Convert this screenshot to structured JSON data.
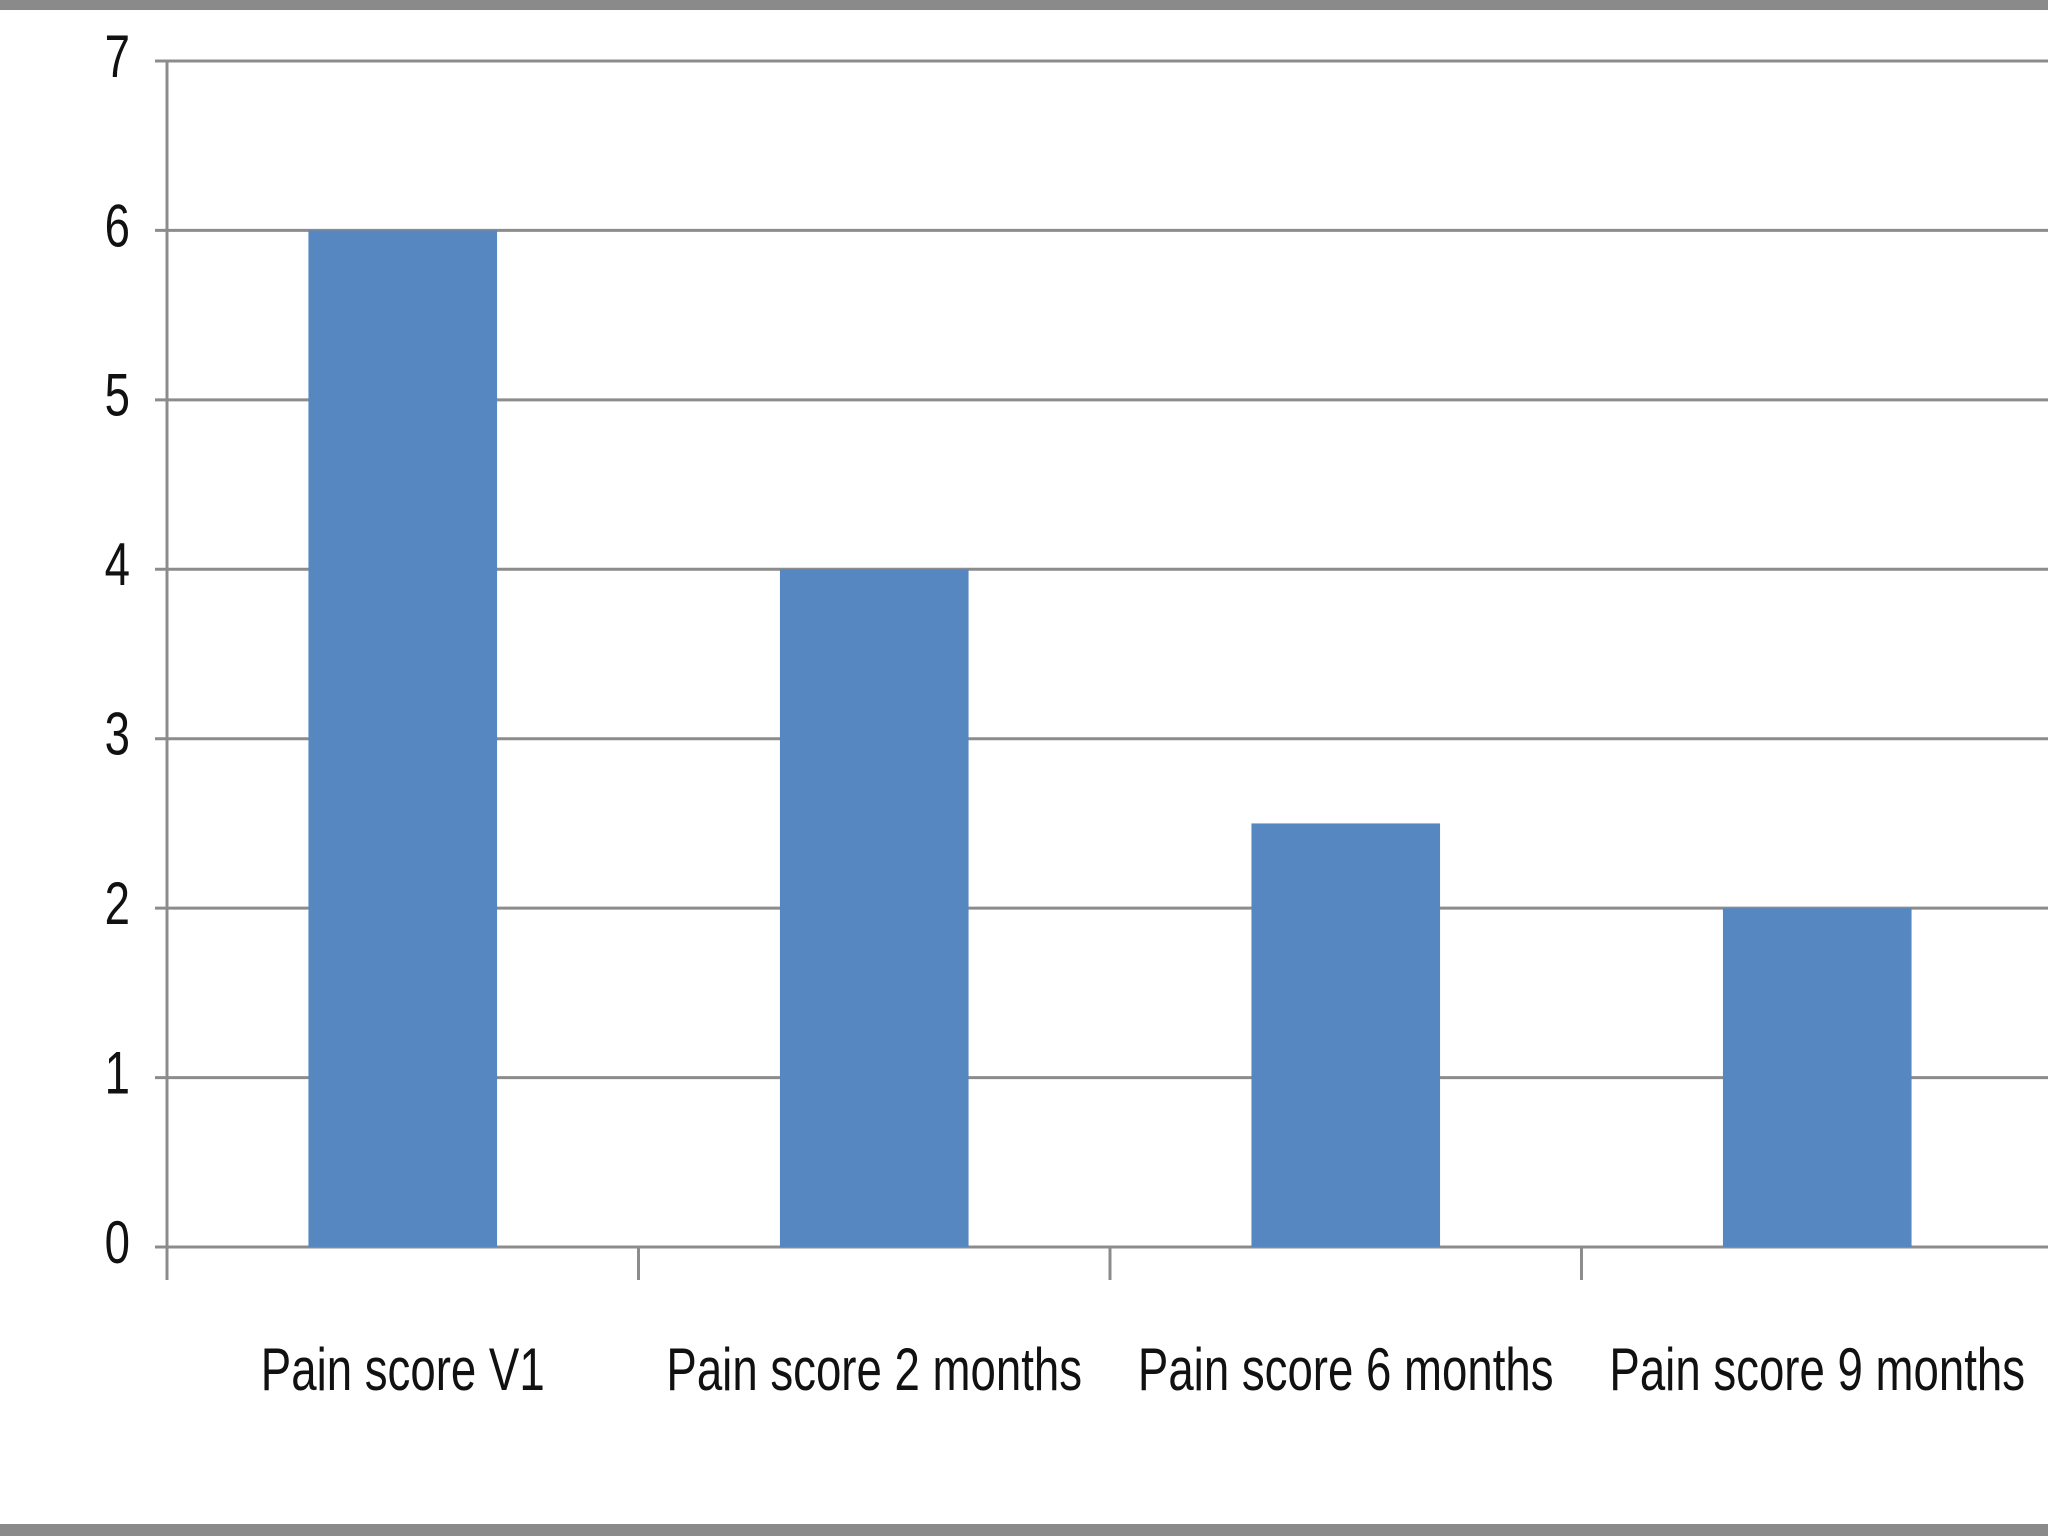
{
  "chart_data": {
    "type": "bar",
    "categories": [
      "Pain score V1",
      "Pain score 2 months",
      "Pain score 6 months",
      "Pain score 9 months"
    ],
    "values": [
      6,
      4,
      2.5,
      2
    ],
    "color": "#5787c0",
    "ylim": [
      0,
      7
    ],
    "yticks": [
      0,
      1,
      2,
      3,
      4,
      5,
      6,
      7
    ],
    "grid": true
  }
}
